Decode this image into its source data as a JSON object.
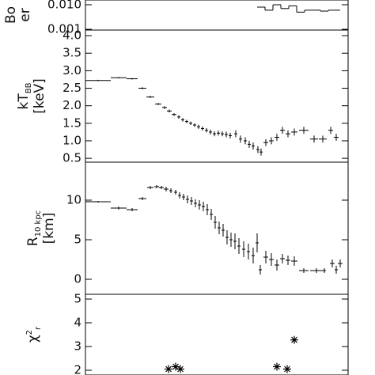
{
  "chart_data": [
    {
      "type": "step",
      "yscale": "log",
      "ylabel": [
        {
          "text": "Bo"
        }
      ],
      "yunit": "er",
      "ylim": [
        0.00093,
        0.0156
      ],
      "yticks": [
        {
          "value": 0.01,
          "label": "0.010"
        },
        0.001
      ],
      "xlim": [
        0,
        332
      ],
      "x": [
        222,
        232,
        242,
        252,
        262,
        272,
        287,
        302,
        314.5
      ],
      "xerr": [
        5,
        5,
        5,
        5,
        5,
        5,
        10,
        5,
        7.5
      ],
      "values": [
        0.008,
        0.006,
        0.01,
        0.007,
        0.009,
        0.005,
        0.006,
        0.0055,
        0.006
      ],
      "color": "#000000"
    },
    {
      "type": "errorbar",
      "ylabel": [
        {
          "text": "kT"
        },
        {
          "text": "BB",
          "script": "sub"
        }
      ],
      "yunit": "[keV]",
      "ylim": [
        0.39,
        4.16
      ],
      "yticks": [
        {
          "value": 4.0,
          "label": "4.0"
        },
        3.5,
        {
          "value": 3.0,
          "label": "3.0"
        },
        2.5,
        {
          "value": 2.0,
          "label": "2.0"
        },
        1.5,
        {
          "value": 1.0,
          "label": "1.0"
        },
        0.5
      ],
      "xlim": [
        0,
        332
      ],
      "x": [
        16,
        42,
        59,
        72,
        82,
        92,
        100,
        106,
        112,
        118,
        123,
        128,
        133,
        138,
        143,
        148,
        153,
        158,
        163,
        168,
        173,
        178,
        183,
        190,
        196,
        202,
        207,
        212,
        218,
        222,
        228,
        235,
        242,
        249,
        256,
        264,
        276,
        289,
        300,
        310,
        317
      ],
      "xerr": [
        16,
        10,
        7,
        5,
        5,
        4,
        3,
        3,
        3,
        2,
        2,
        2,
        2,
        2,
        2,
        2,
        2,
        2,
        2,
        2,
        2,
        2,
        2,
        2,
        2,
        2,
        2,
        2,
        2,
        2,
        3,
        3,
        3,
        3,
        3,
        4,
        6,
        5,
        5,
        3,
        3
      ],
      "values": [
        2.72,
        2.8,
        2.77,
        2.5,
        2.25,
        2.05,
        1.95,
        1.85,
        1.75,
        1.68,
        1.6,
        1.55,
        1.5,
        1.45,
        1.4,
        1.35,
        1.3,
        1.25,
        1.2,
        1.22,
        1.2,
        1.18,
        1.15,
        1.2,
        1.05,
        1.0,
        0.9,
        0.85,
        0.75,
        0.68,
        0.95,
        1.0,
        1.1,
        1.3,
        1.2,
        1.25,
        1.3,
        1.05,
        1.05,
        1.3,
        1.1
      ],
      "yerr": [
        0.02,
        0.02,
        0.02,
        0.03,
        0.03,
        0.03,
        0.04,
        0.04,
        0.04,
        0.05,
        0.05,
        0.05,
        0.05,
        0.05,
        0.06,
        0.06,
        0.06,
        0.07,
        0.07,
        0.07,
        0.07,
        0.08,
        0.08,
        0.1,
        0.1,
        0.1,
        0.1,
        0.1,
        0.1,
        0.1,
        0.1,
        0.1,
        0.1,
        0.1,
        0.1,
        0.1,
        0.1,
        0.1,
        0.1,
        0.1,
        0.1
      ],
      "color": "#000000"
    },
    {
      "type": "errorbar",
      "ylabel": [
        {
          "text": "R"
        },
        {
          "text": "10 kpc",
          "script": "sub"
        }
      ],
      "yunit": "[km]",
      "ylim": [
        -1.9,
        14.8
      ],
      "yticks": [
        0,
        5,
        10
      ],
      "xlim": [
        0,
        332
      ],
      "x": [
        16,
        42,
        59,
        72,
        82,
        90,
        96,
        102,
        108,
        114,
        119,
        124,
        129,
        134,
        139,
        144,
        149,
        154,
        159,
        164,
        169,
        174,
        179,
        184,
        189,
        194,
        200,
        206,
        212,
        217,
        221,
        228,
        235,
        242,
        249,
        256,
        264,
        276,
        292,
        302,
        312,
        317,
        322
      ],
      "xerr": [
        16,
        10,
        7,
        5,
        4,
        3,
        3,
        3,
        2,
        2,
        2,
        2,
        2,
        2,
        2,
        2,
        2,
        2,
        2,
        2,
        2,
        2,
        2,
        2,
        2,
        2,
        2,
        2,
        2,
        2,
        2,
        3,
        3,
        3,
        3,
        3,
        4,
        6,
        8,
        2,
        3,
        2,
        3
      ],
      "values": [
        9.8,
        9,
        8.8,
        10.2,
        11.6,
        11.7,
        11.6,
        11.4,
        11.2,
        11,
        10.6,
        10.4,
        10.1,
        9.9,
        9.6,
        9.4,
        9.2,
        8.8,
        8.2,
        7.2,
        6.5,
        6.2,
        5.3,
        5.0,
        4.8,
        4.2,
        3.8,
        3.5,
        3.0,
        4.6,
        1.2,
        2.8,
        2.5,
        1.8,
        2.6,
        2.4,
        2.3,
        1.1,
        1.1,
        1.1,
        2.0,
        1.2,
        2.0
      ],
      "yerr": [
        0.1,
        0.2,
        0.2,
        0.2,
        0.2,
        0.2,
        0.2,
        0.3,
        0.3,
        0.3,
        0.4,
        0.4,
        0.5,
        0.5,
        0.5,
        0.6,
        0.6,
        0.7,
        0.7,
        0.8,
        0.8,
        0.8,
        0.9,
        0.9,
        1,
        1,
        1,
        1,
        1,
        1.2,
        0.6,
        0.8,
        0.8,
        0.7,
        0.6,
        0.6,
        0.6,
        0.3,
        0.3,
        0.3,
        0.5,
        0.5,
        0.5
      ],
      "color": "#000000"
    },
    {
      "type": "scatter",
      "ylabel": [
        {
          "text": "χ"
        },
        {
          "text": "2",
          "script": "super"
        },
        {
          "text": "r",
          "script": "sub"
        }
      ],
      "ylim": [
        1.8,
        5.2
      ],
      "yticks": [
        2,
        3,
        4,
        5
      ],
      "xlim": [
        0,
        332
      ],
      "x": [
        105,
        114,
        120,
        242,
        255,
        264
      ],
      "values": [
        2.05,
        2.15,
        2.05,
        2.15,
        2.05,
        3.28
      ],
      "color": "#000000"
    }
  ]
}
